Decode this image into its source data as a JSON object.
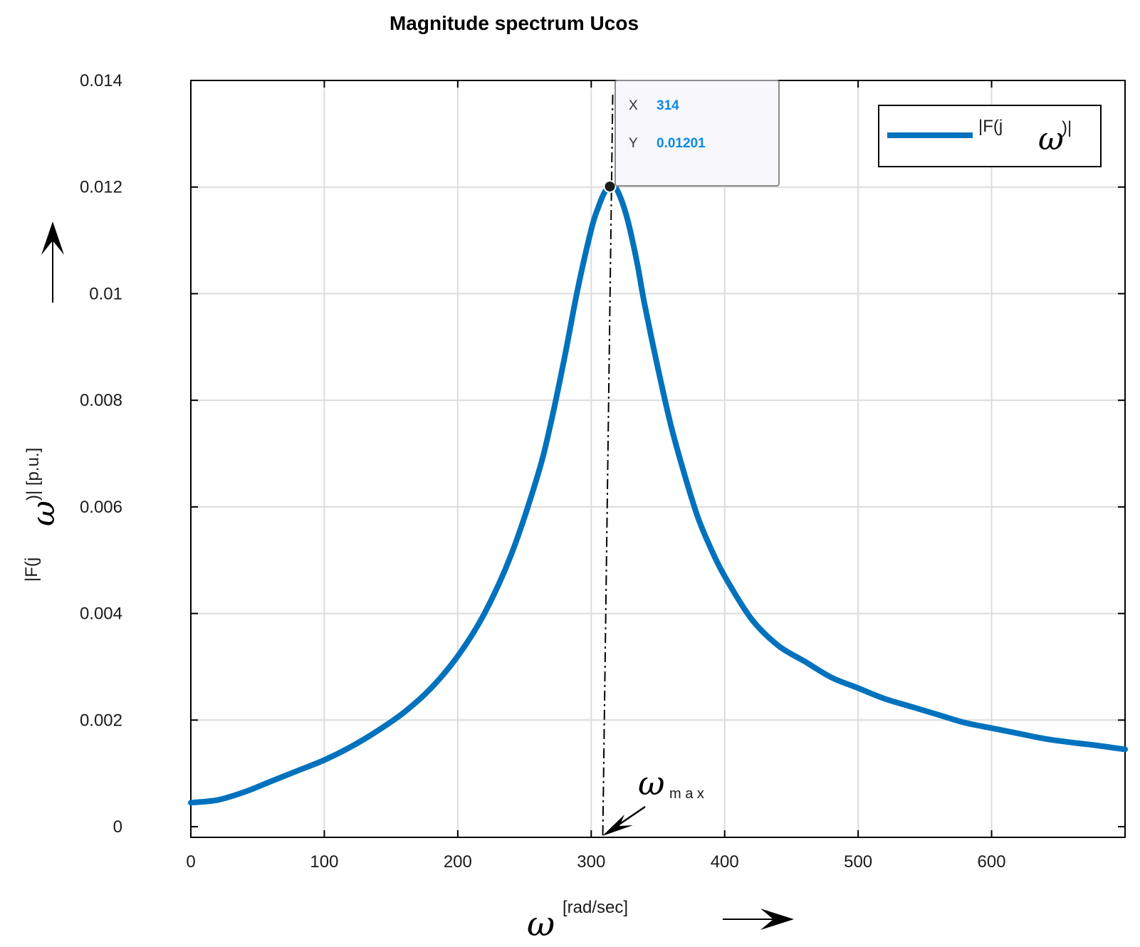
{
  "chart_data": {
    "type": "line",
    "title": "Magnitude spectrum Ucos",
    "xlabel": {
      "symbol": "ω",
      "unit": "[rad/sec]"
    },
    "ylabel": {
      "prefix": "|F(j",
      "symbol": "ω",
      "suffix": ")| [p.u.]"
    },
    "xlim": [
      0,
      700
    ],
    "ylim": [
      -0.0002,
      0.014
    ],
    "x_ticks": [
      "0",
      "100",
      "200",
      "300",
      "400",
      "500",
      "600"
    ],
    "x_tick_values": [
      0,
      100,
      200,
      300,
      400,
      500,
      600
    ],
    "y_ticks": [
      "0",
      "0.002",
      "0.004",
      "0.006",
      "0.008",
      "0.01",
      "0.012",
      "0.014"
    ],
    "y_tick_values": [
      0,
      0.002,
      0.004,
      0.006,
      0.008,
      0.01,
      0.012,
      0.014
    ],
    "grid": true,
    "legend": {
      "position": "top-right",
      "prefix": "|F(j",
      "symbol": "ω",
      "suffix": ")|"
    },
    "series": [
      {
        "name": "|F(jω)|",
        "color": "#0072BD",
        "x": [
          0,
          20,
          40,
          60,
          80,
          100,
          120,
          140,
          160,
          180,
          200,
          220,
          240,
          260,
          270,
          280,
          290,
          300,
          305,
          310,
          314,
          318,
          322,
          326,
          330,
          335,
          340,
          350,
          360,
          370,
          380,
          390,
          400,
          420,
          440,
          460,
          480,
          500,
          520,
          540,
          560,
          580,
          600,
          620,
          640,
          660,
          680,
          700
        ],
        "y": [
          0.00045,
          0.0005,
          0.00065,
          0.00085,
          0.00105,
          0.00125,
          0.0015,
          0.0018,
          0.00215,
          0.0026,
          0.0032,
          0.004,
          0.0051,
          0.0066,
          0.0076,
          0.0088,
          0.0101,
          0.0112,
          0.0116,
          0.0119,
          0.01201,
          0.012,
          0.0118,
          0.0115,
          0.0111,
          0.0105,
          0.0098,
          0.0086,
          0.0075,
          0.0066,
          0.0058,
          0.0052,
          0.0047,
          0.0039,
          0.0034,
          0.0031,
          0.0028,
          0.0026,
          0.0024,
          0.00225,
          0.0021,
          0.00195,
          0.00185,
          0.00175,
          0.00165,
          0.00158,
          0.00152,
          0.00145
        ]
      }
    ],
    "datatip": {
      "x_key": "X",
      "x_value": "314",
      "y_key": "Y",
      "y_value": "0.01201",
      "x": 314,
      "y": 0.01201
    },
    "annotation": {
      "symbol": "ω",
      "subscript": "m  a  x",
      "x": 314
    }
  }
}
